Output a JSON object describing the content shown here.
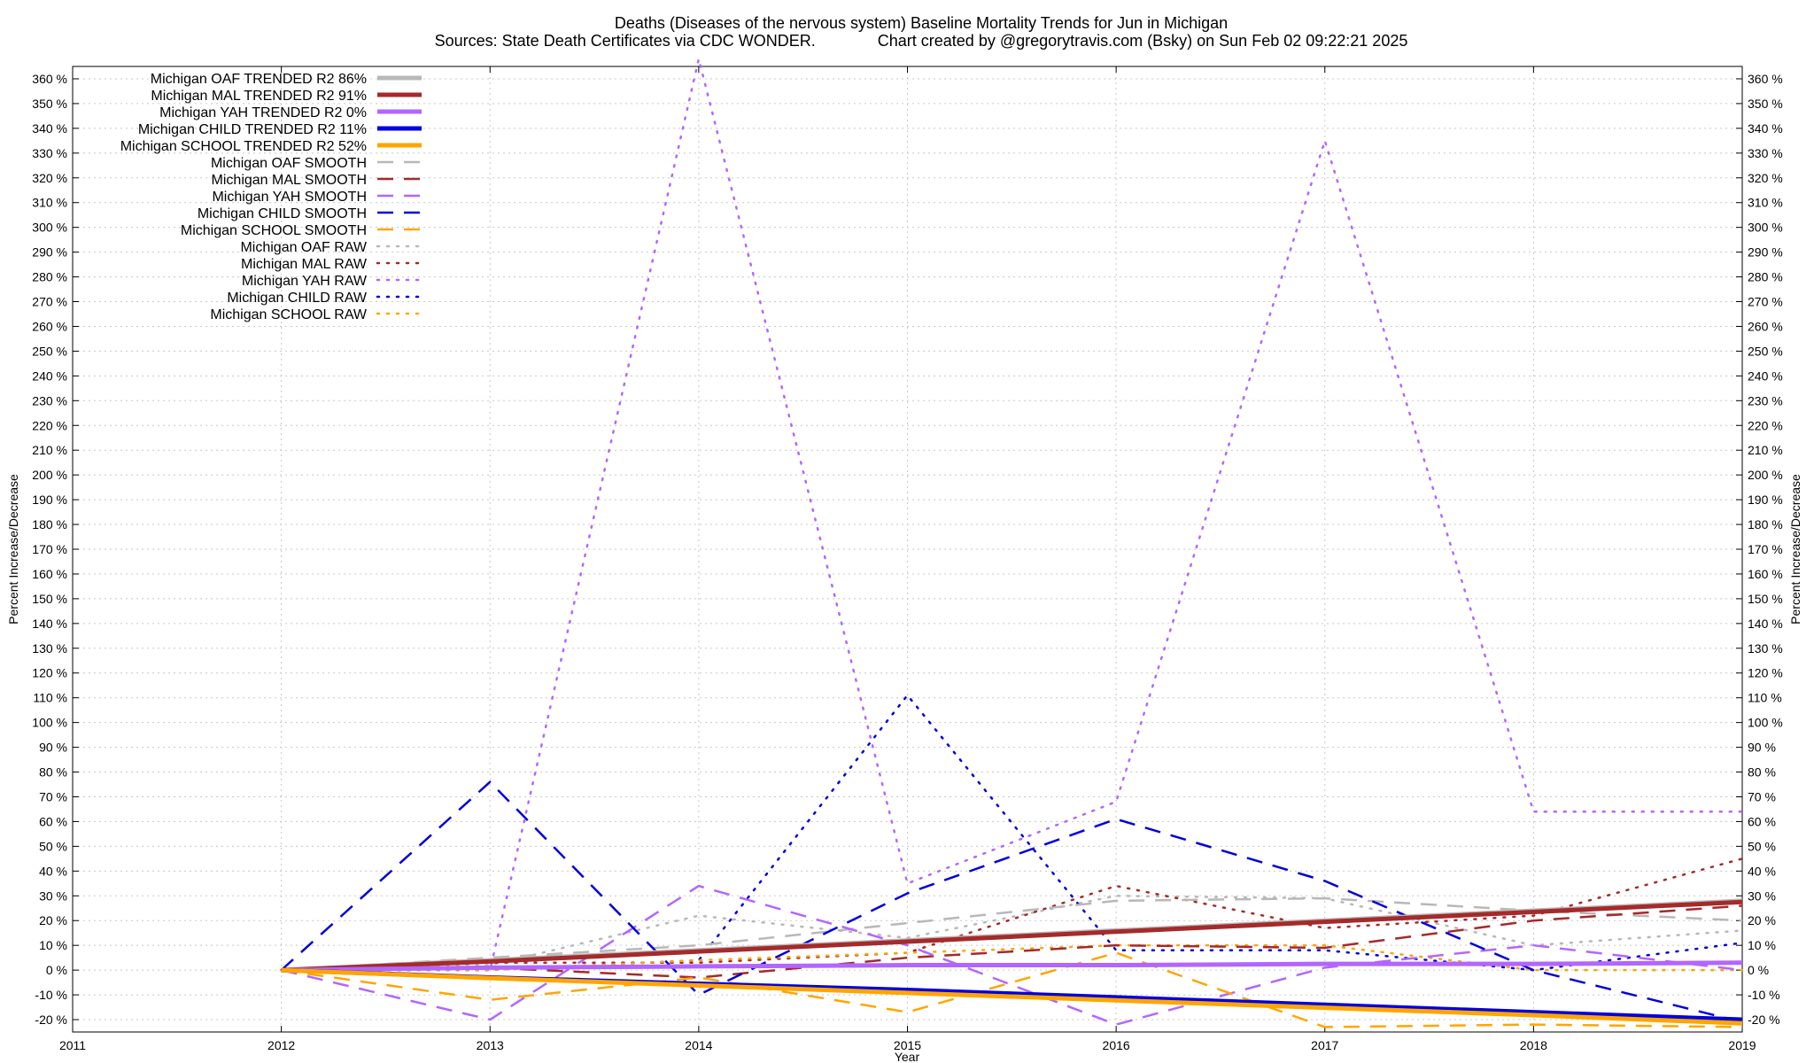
{
  "chart_data": {
    "type": "line",
    "title": "Deaths (Diseases of the nervous system)  Baseline Mortality Trends for Jun in Michigan",
    "subtitle": "Sources: State Death Certificates via CDC WONDER.              Chart created by @gregorytravis.com (Bsky) on Sun Feb 02 09:22:21 2025",
    "xlabel": "Year",
    "ylabel": "Percent Increase/Decrease",
    "y2label": "Percent Increase/Decrease",
    "xlim": [
      2011,
      2019
    ],
    "ylim": [
      -25,
      365
    ],
    "x_ticks": [
      2011,
      2012,
      2013,
      2014,
      2015,
      2016,
      2017,
      2018,
      2019
    ],
    "y_ticks": [
      -20,
      -10,
      0,
      10,
      20,
      30,
      40,
      50,
      60,
      70,
      80,
      90,
      100,
      110,
      120,
      130,
      140,
      150,
      160,
      170,
      180,
      190,
      200,
      210,
      220,
      230,
      240,
      250,
      260,
      270,
      280,
      290,
      300,
      310,
      320,
      330,
      340,
      350,
      360
    ],
    "y_tick_suffix": " %",
    "grid": true,
    "legend_position": "top-left",
    "x": [
      2012,
      2013,
      2014,
      2015,
      2016,
      2017,
      2018,
      2019
    ],
    "series": [
      {
        "name": "Michigan OAF TRENDED R2  86%",
        "style": "solid",
        "color": "#b8b8b8",
        "width": 5,
        "values": [
          0,
          4,
          8,
          12,
          16,
          20,
          24,
          28
        ]
      },
      {
        "name": "Michigan MAL TRENDED R2  91%",
        "style": "solid",
        "color": "#a52a2a",
        "width": 5,
        "values": [
          0,
          3.5,
          7.5,
          11.5,
          15.5,
          19.5,
          23.5,
          27.5
        ]
      },
      {
        "name": "Michigan YAH TRENDED R2   0%",
        "style": "solid",
        "color": "#b266ff",
        "width": 5,
        "values": [
          0,
          1,
          1.5,
          2,
          2,
          2.5,
          2.5,
          3
        ]
      },
      {
        "name": "Michigan CHILD TRENDED R2  11%",
        "style": "solid",
        "color": "#0000dd",
        "width": 5,
        "values": [
          0,
          -3,
          -5.5,
          -8,
          -11,
          -14,
          -17,
          -20
        ]
      },
      {
        "name": "Michigan SCHOOL TRENDED R2  52%",
        "style": "solid",
        "color": "#ffa500",
        "width": 5,
        "values": [
          0,
          -3.2,
          -6.2,
          -9.2,
          -12.2,
          -15.2,
          -18.2,
          -21.5
        ]
      },
      {
        "name": "Michigan OAF SMOOTH",
        "style": "dashed",
        "color": "#b8b8b8",
        "width": 2.5,
        "values": [
          0,
          5,
          10,
          19,
          28,
          29,
          24,
          20
        ]
      },
      {
        "name": "Michigan MAL SMOOTH",
        "style": "dashed",
        "color": "#a52a2a",
        "width": 2.5,
        "values": [
          0,
          1,
          -3,
          5,
          10,
          9,
          20,
          26
        ]
      },
      {
        "name": "Michigan YAH SMOOTH",
        "style": "dashed",
        "color": "#b266ff",
        "width": 2.5,
        "values": [
          0,
          -20,
          34,
          10,
          -22,
          1,
          10,
          0
        ]
      },
      {
        "name": "Michigan CHILD SMOOTH",
        "style": "dashed",
        "color": "#0000dd",
        "width": 2.5,
        "values": [
          0,
          76,
          -10,
          31,
          61,
          36,
          0,
          -21
        ]
      },
      {
        "name": "Michigan SCHOOL SMOOTH",
        "style": "dashed",
        "color": "#ffa500",
        "width": 2.5,
        "values": [
          0,
          -12,
          -3,
          -17,
          7,
          -23,
          -22,
          -23
        ]
      },
      {
        "name": "Michigan OAF RAW",
        "style": "dotted",
        "color": "#b8b8b8",
        "width": 2.5,
        "values": [
          0,
          2,
          22,
          13,
          30,
          29,
          10,
          16
        ]
      },
      {
        "name": "Michigan MAL RAW",
        "style": "dotted",
        "color": "#a52a2a",
        "width": 2.5,
        "values": [
          0,
          3,
          3,
          7,
          34,
          17,
          22,
          45
        ]
      },
      {
        "name": "Michigan YAH RAW",
        "style": "dotted",
        "color": "#b266ff",
        "width": 2.5,
        "values": [
          0,
          0,
          368,
          35,
          68,
          335,
          64,
          64
        ]
      },
      {
        "name": "Michigan CHILD RAW",
        "style": "dotted",
        "color": "#0000dd",
        "width": 2.5,
        "values": [
          0,
          0,
          4,
          111,
          8,
          8,
          0,
          11
        ]
      },
      {
        "name": "Michigan SCHOOL RAW",
        "style": "dotted",
        "color": "#ffa500",
        "width": 2.5,
        "values": [
          0,
          0,
          4,
          7,
          10,
          10,
          0,
          0
        ]
      }
    ]
  }
}
